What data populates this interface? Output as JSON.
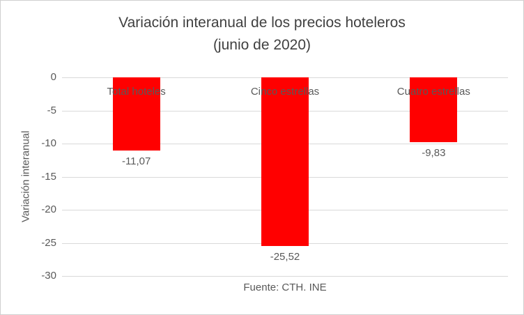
{
  "chart_data": {
    "type": "bar",
    "title_line1": "Variación interanual de los precios hoteleros",
    "title_line2": "(junio de 2020)",
    "categories": [
      "Total hoteles",
      "Cinco estrellas",
      "Cuatro estrellas"
    ],
    "values": [
      -11.07,
      -25.52,
      -9.83
    ],
    "value_labels": [
      "-11,07",
      "-25,52",
      "-9,83"
    ],
    "ylabel": "Variación interanual",
    "xlabel": "Fuente: CTH. INE",
    "ylim": [
      -30,
      0
    ],
    "yticks": [
      0,
      -5,
      -10,
      -15,
      -20,
      -25,
      -30
    ],
    "ytick_labels": [
      "0",
      "-5",
      "-10",
      "-15",
      "-20",
      "-25",
      "-30"
    ],
    "bar_color": "#ff0000",
    "grid": true,
    "legend": "none"
  }
}
